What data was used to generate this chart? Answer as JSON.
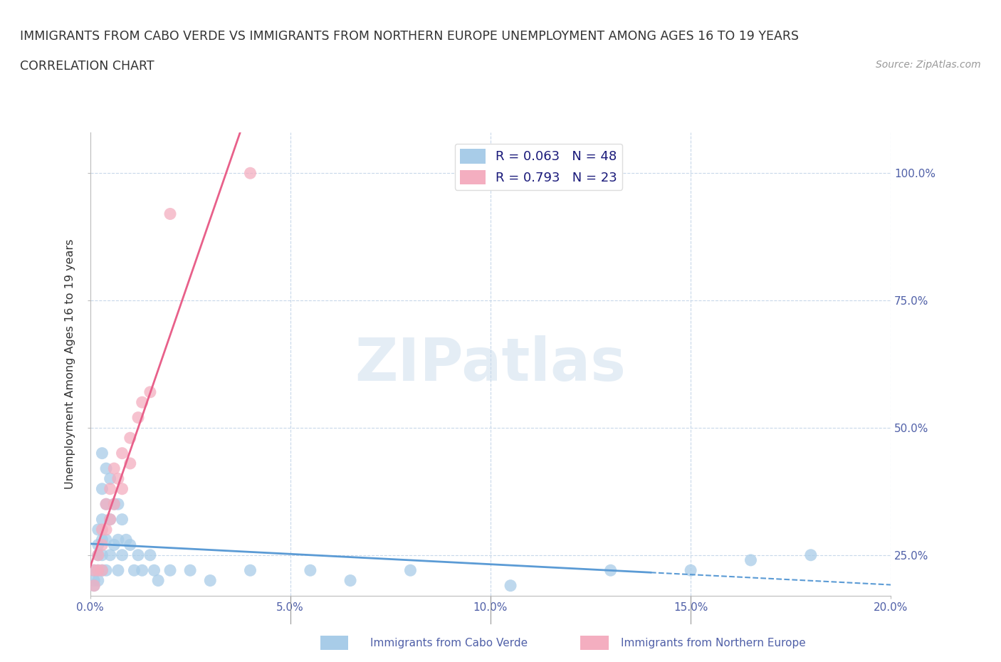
{
  "title_line1": "IMMIGRANTS FROM CABO VERDE VS IMMIGRANTS FROM NORTHERN EUROPE UNEMPLOYMENT AMONG AGES 16 TO 19 YEARS",
  "title_line2": "CORRELATION CHART",
  "source": "Source: ZipAtlas.com",
  "ylabel": "Unemployment Among Ages 16 to 19 years",
  "xlim": [
    0.0,
    0.2
  ],
  "ylim": [
    0.17,
    1.08
  ],
  "y_ticks": [
    0.25,
    0.5,
    0.75,
    1.0
  ],
  "y_tick_labels": [
    "25.0%",
    "50.0%",
    "75.0%",
    "100.0%"
  ],
  "x_ticks": [
    0.0,
    0.05,
    0.1,
    0.15,
    0.2
  ],
  "x_tick_labels": [
    "0.0%",
    "5.0%",
    "10.0%",
    "15.0%",
    "20.0%"
  ],
  "cabo_verde_R": 0.063,
  "cabo_verde_N": 48,
  "northern_europe_R": 0.793,
  "northern_europe_N": 23,
  "cabo_verde_color": "#a8cce8",
  "northern_europe_color": "#f4aec0",
  "cabo_verde_line_color": "#5b9bd5",
  "northern_europe_line_color": "#e8608a",
  "watermark": "ZIPatlas",
  "background_color": "#ffffff",
  "grid_color": "#c8d8ea",
  "legend_label_cv": "Immigrants from Cabo Verde",
  "legend_label_ne": "Immigrants from Northern Europe",
  "cabo_verde_x": [
    0.001,
    0.001,
    0.001,
    0.002,
    0.002,
    0.002,
    0.002,
    0.002,
    0.003,
    0.003,
    0.003,
    0.003,
    0.003,
    0.003,
    0.004,
    0.004,
    0.004,
    0.004,
    0.005,
    0.005,
    0.005,
    0.006,
    0.006,
    0.007,
    0.007,
    0.007,
    0.008,
    0.008,
    0.009,
    0.01,
    0.011,
    0.012,
    0.013,
    0.015,
    0.016,
    0.017,
    0.02,
    0.025,
    0.03,
    0.04,
    0.055,
    0.065,
    0.08,
    0.105,
    0.13,
    0.15,
    0.165,
    0.18
  ],
  "cabo_verde_y": [
    0.22,
    0.2,
    0.19,
    0.3,
    0.27,
    0.25,
    0.22,
    0.2,
    0.45,
    0.38,
    0.32,
    0.28,
    0.25,
    0.22,
    0.42,
    0.35,
    0.28,
    0.22,
    0.4,
    0.32,
    0.25,
    0.35,
    0.27,
    0.35,
    0.28,
    0.22,
    0.32,
    0.25,
    0.28,
    0.27,
    0.22,
    0.25,
    0.22,
    0.25,
    0.22,
    0.2,
    0.22,
    0.22,
    0.2,
    0.22,
    0.22,
    0.2,
    0.22,
    0.19,
    0.22,
    0.22,
    0.24,
    0.25
  ],
  "northern_europe_x": [
    0.001,
    0.001,
    0.002,
    0.002,
    0.003,
    0.003,
    0.003,
    0.004,
    0.004,
    0.005,
    0.005,
    0.006,
    0.006,
    0.007,
    0.008,
    0.008,
    0.01,
    0.01,
    0.012,
    0.013,
    0.015,
    0.02,
    0.04
  ],
  "northern_europe_y": [
    0.22,
    0.19,
    0.25,
    0.22,
    0.3,
    0.27,
    0.22,
    0.35,
    0.3,
    0.38,
    0.32,
    0.42,
    0.35,
    0.4,
    0.45,
    0.38,
    0.48,
    0.43,
    0.52,
    0.55,
    0.57,
    0.92,
    1.0
  ]
}
